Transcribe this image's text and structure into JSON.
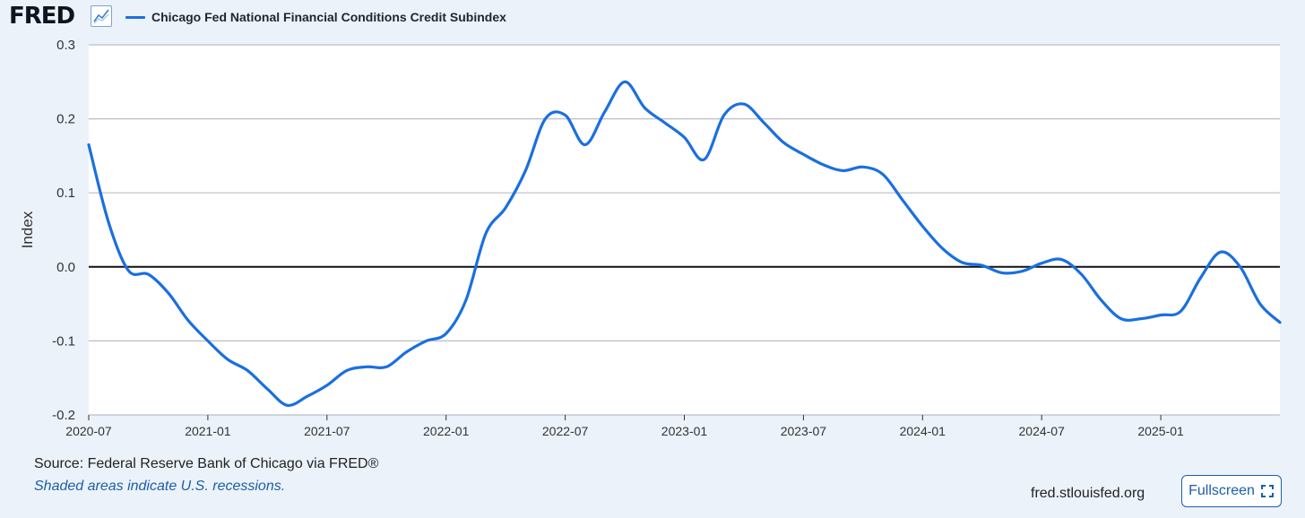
{
  "header": {
    "logo_text": "FRED",
    "logo_icon": "line-chart-icon",
    "legend_label": "Chicago Fed National Financial Conditions Credit Subindex",
    "series_color": "#1a6fe0"
  },
  "footer": {
    "source": "Source: Federal Reserve Bank of Chicago via FRED®",
    "note": "Shaded areas indicate U.S. recessions.",
    "site": "fred.stlouisfed.org",
    "fullscreen_label": "Fullscreen",
    "fullscreen_icon": "expand-icon"
  },
  "chart_data": {
    "type": "line",
    "title": "",
    "xlabel": "",
    "ylabel": "Index",
    "ylim": [
      -0.2,
      0.3
    ],
    "yticks": [
      0.3,
      0.2,
      0.1,
      0.0,
      -0.1,
      -0.2
    ],
    "ytick_labels": [
      "0.3",
      "0.2",
      "0.1",
      "0.0",
      "-0.1",
      "-0.2"
    ],
    "xticks": [
      "2020-07",
      "2021-01",
      "2021-07",
      "2022-01",
      "2022-07",
      "2023-01",
      "2023-07",
      "2024-01",
      "2024-07",
      "2025-01"
    ],
    "xlim": [
      "2020-07",
      "2025-07"
    ],
    "grid": true,
    "zero_line": true,
    "series": [
      {
        "color": "#1a6fe0",
        "points": [
          [
            "2020-07",
            0.165
          ],
          [
            "2020-08",
            0.06
          ],
          [
            "2020-09",
            -0.005
          ],
          [
            "2020-10",
            -0.01
          ],
          [
            "2020-11",
            -0.035
          ],
          [
            "2020-12",
            -0.072
          ],
          [
            "2021-01",
            -0.1
          ],
          [
            "2021-02",
            -0.125
          ],
          [
            "2021-03",
            -0.14
          ],
          [
            "2021-04",
            -0.165
          ],
          [
            "2021-05",
            -0.187
          ],
          [
            "2021-06",
            -0.175
          ],
          [
            "2021-07",
            -0.16
          ],
          [
            "2021-08",
            -0.14
          ],
          [
            "2021-09",
            -0.135
          ],
          [
            "2021-10",
            -0.135
          ],
          [
            "2021-11",
            -0.115
          ],
          [
            "2021-12",
            -0.1
          ],
          [
            "2022-01",
            -0.09
          ],
          [
            "2022-02",
            -0.045
          ],
          [
            "2022-03",
            0.045
          ],
          [
            "2022-04",
            0.08
          ],
          [
            "2022-05",
            0.13
          ],
          [
            "2022-06",
            0.2
          ],
          [
            "2022-07",
            0.205
          ],
          [
            "2022-08",
            0.165
          ],
          [
            "2022-09",
            0.21
          ],
          [
            "2022-10",
            0.25
          ],
          [
            "2022-11",
            0.215
          ],
          [
            "2022-12",
            0.195
          ],
          [
            "2023-01",
            0.175
          ],
          [
            "2023-02",
            0.145
          ],
          [
            "2023-03",
            0.205
          ],
          [
            "2023-04",
            0.22
          ],
          [
            "2023-05",
            0.195
          ],
          [
            "2023-06",
            0.168
          ],
          [
            "2023-07",
            0.152
          ],
          [
            "2023-08",
            0.138
          ],
          [
            "2023-09",
            0.13
          ],
          [
            "2023-10",
            0.135
          ],
          [
            "2023-11",
            0.125
          ],
          [
            "2023-12",
            0.09
          ],
          [
            "2024-01",
            0.055
          ],
          [
            "2024-02",
            0.025
          ],
          [
            "2024-03",
            0.006
          ],
          [
            "2024-04",
            0.002
          ],
          [
            "2024-05",
            -0.008
          ],
          [
            "2024-06",
            -0.006
          ],
          [
            "2024-07",
            0.005
          ],
          [
            "2024-08",
            0.01
          ],
          [
            "2024-09",
            -0.01
          ],
          [
            "2024-10",
            -0.045
          ],
          [
            "2024-11",
            -0.07
          ],
          [
            "2024-12",
            -0.07
          ],
          [
            "2025-01",
            -0.065
          ],
          [
            "2025-02",
            -0.06
          ],
          [
            "2025-03",
            -0.015
          ],
          [
            "2025-04",
            0.02
          ],
          [
            "2025-05",
            0.0
          ],
          [
            "2025-06",
            -0.05
          ],
          [
            "2025-07",
            -0.075
          ]
        ]
      }
    ]
  }
}
